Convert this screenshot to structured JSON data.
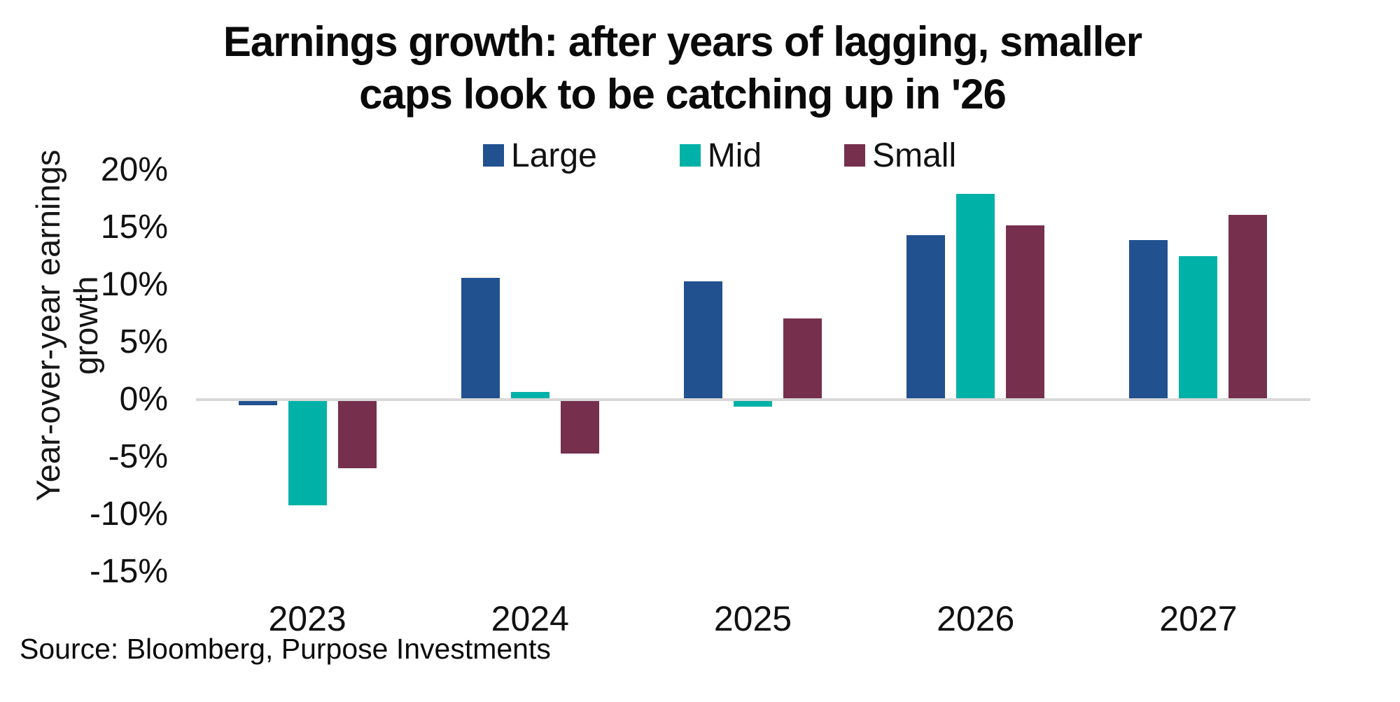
{
  "title": {
    "line1": "Earnings growth: after years of lagging, smaller",
    "line2": "caps look to be catching up in '26"
  },
  "y_axis_title": {
    "line1": "Year-over-year earnings",
    "line2": "growth"
  },
  "source": "Source: Bloomberg, Purpose Investments",
  "colors": {
    "large": "#21518F",
    "mid": "#00B1A7",
    "small": "#76304E",
    "axis_line": "#D8D8D8",
    "text": "#111111"
  },
  "chart_data": {
    "type": "bar",
    "title": "Earnings growth: after years of lagging, smaller caps look to be catching up in '26",
    "categories": [
      "2023",
      "2024",
      "2025",
      "2026",
      "2027"
    ],
    "series": [
      {
        "name": "Large",
        "color": "#21518F",
        "values": [
          -0.5,
          10.6,
          10.3,
          14.3,
          13.9
        ]
      },
      {
        "name": "Mid",
        "color": "#00B1A7",
        "values": [
          -9.2,
          0.7,
          -0.6,
          17.9,
          12.5
        ]
      },
      {
        "name": "Small",
        "color": "#76304E",
        "values": [
          -6.0,
          -4.7,
          7.1,
          15.2,
          16.1
        ]
      }
    ],
    "xlabel": "",
    "ylabel": "Year-over-year earnings growth",
    "unit": "%",
    "y_ticks": [
      "20%",
      "15%",
      "10%",
      "5%",
      "0%",
      "-5%",
      "-10%",
      "-15%"
    ],
    "ylim": [
      -15,
      20
    ],
    "grid": false,
    "legend_position": "top"
  }
}
